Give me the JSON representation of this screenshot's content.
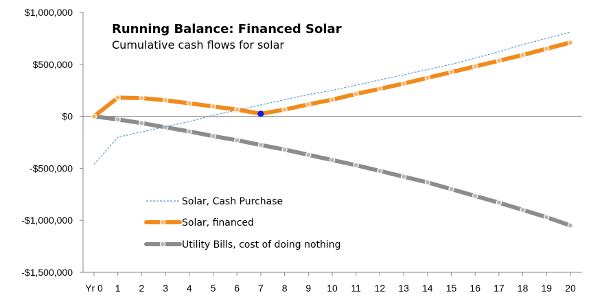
{
  "chart_data": {
    "type": "line",
    "title": "Running Balance:  Financed Solar",
    "subtitle": "Cumulative cash flows for solar",
    "xlabel": "",
    "ylabel": "",
    "categories": [
      "Yr 0",
      "1",
      "2",
      "3",
      "4",
      "5",
      "6",
      "7",
      "8",
      "9",
      "10",
      "11",
      "12",
      "13",
      "14",
      "15",
      "16",
      "17",
      "18",
      "19",
      "20"
    ],
    "ylim": [
      -1500000,
      1000000
    ],
    "yticks": [
      {
        "value": 1000000,
        "label": "$1,000,000"
      },
      {
        "value": 500000,
        "label": "$500,000"
      },
      {
        "value": 0,
        "label": "$0"
      },
      {
        "value": -500000,
        "label": "-$500,000"
      },
      {
        "value": -1000000,
        "label": "-$1,000,000"
      },
      {
        "value": -1500000,
        "label": "-$1,500,000"
      }
    ],
    "grid": false,
    "legend_position": "bottom-left",
    "series": [
      {
        "name": "Solar, Cash Purchase",
        "color": "#5b9bd5",
        "style": "dashed",
        "values": [
          -460000,
          -200000,
          -150000,
          -100000,
          -50000,
          10000,
          60000,
          110000,
          160000,
          210000,
          250000,
          300000,
          350000,
          400000,
          450000,
          500000,
          560000,
          620000,
          690000,
          750000,
          810000
        ]
      },
      {
        "name": "Solar, financed",
        "color": "#f28a1b",
        "style": "thick-marker",
        "highlight_index": 7,
        "highlight_color": "#1a1adb",
        "values": [
          0,
          180000,
          175000,
          155000,
          125000,
          95000,
          65000,
          25000,
          65000,
          115000,
          160000,
          215000,
          265000,
          315000,
          370000,
          425000,
          480000,
          535000,
          590000,
          650000,
          710000
        ]
      },
      {
        "name": "Utility Bills, cost of doing nothing",
        "color": "#8c8c8c",
        "style": "thick-marker",
        "values": [
          0,
          -30000,
          -65000,
          -105000,
          -145000,
          -190000,
          -230000,
          -275000,
          -320000,
          -370000,
          -420000,
          -470000,
          -525000,
          -580000,
          -635000,
          -700000,
          -765000,
          -830000,
          -900000,
          -970000,
          -1050000
        ]
      }
    ]
  }
}
